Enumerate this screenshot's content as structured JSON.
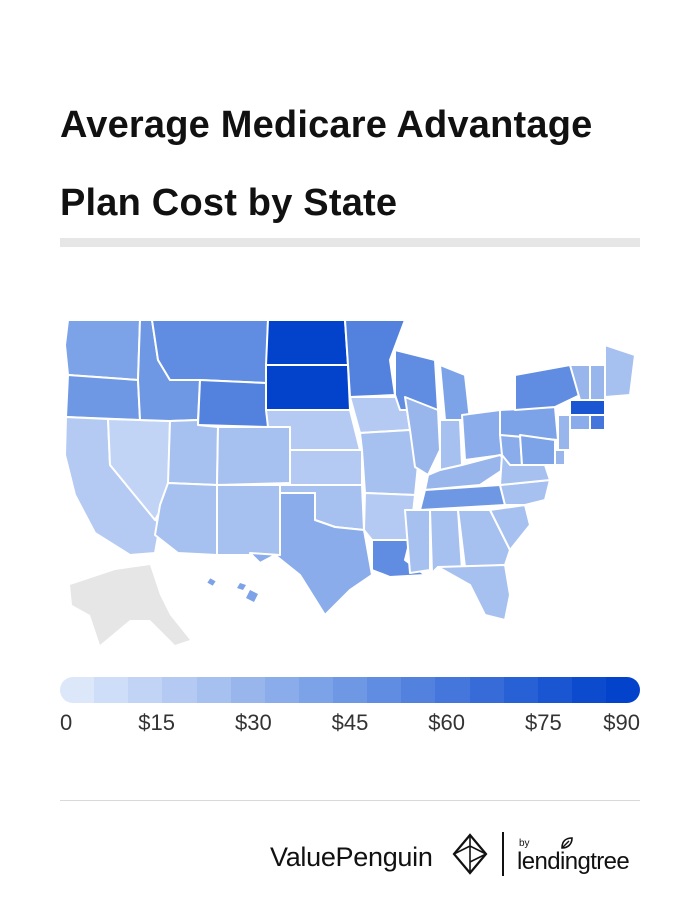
{
  "header": {
    "title": "Average Medicare Advantage Plan Cost by State"
  },
  "map": {
    "no_data_color": "#e6e6e6",
    "border_color": "#ffffff",
    "states": {
      "WA": 40,
      "OR": 45,
      "CA": 18,
      "NV": 12,
      "ID": 45,
      "MT": 50,
      "WY": 55,
      "UT": 25,
      "CO": 20,
      "AZ": 20,
      "NM": 20,
      "ND": 90,
      "SD": 88,
      "NE": 15,
      "KS": 18,
      "OK": 25,
      "TX": 35,
      "MN": 55,
      "IA": 15,
      "MO": 25,
      "AR": 18,
      "LA": 50,
      "WI": 50,
      "IL": 30,
      "MI": 40,
      "IN": 25,
      "OH": 35,
      "KY": 30,
      "TN": 45,
      "MS": 25,
      "AL": 25,
      "GA": 25,
      "FL": 20,
      "SC": 20,
      "NC": 20,
      "VA": 25,
      "WV": 35,
      "PA": 40,
      "NY": 50,
      "ME": 20,
      "NH": 30,
      "VT": 30,
      "MA": 80,
      "CT": 35,
      "RI": 60,
      "NJ": 30,
      "DE": 30,
      "MD": 40,
      "HI": 40
    }
  },
  "legend": {
    "colors": [
      "#dce7fa",
      "#cfdef8",
      "#c2d4f5",
      "#b4caf2",
      "#a6c0ef",
      "#98b6ec",
      "#8aacea",
      "#7ca2e7",
      "#6e97e4",
      "#608ce1",
      "#5281de",
      "#4476db",
      "#366bd8",
      "#2860d5",
      "#1a55d2",
      "#0c4ace",
      "#0342cb"
    ],
    "ticks": [
      "0",
      "$15",
      "$30",
      "$45",
      "$60",
      "$75",
      "$90"
    ],
    "min": 0,
    "max": 90
  },
  "footer": {
    "brand_valuepenguin": "ValuePenguin",
    "brand_by": "by",
    "brand_lendingtree": "lendingtree"
  }
}
